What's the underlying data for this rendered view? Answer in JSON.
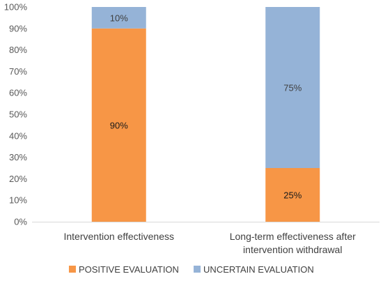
{
  "chart_data": {
    "type": "bar",
    "stacked": true,
    "percent_stacked": true,
    "categories": [
      [
        "Intervention effectiveness"
      ],
      [
        "Long-term effectiveness after",
        "intervention withdrawal"
      ]
    ],
    "series": [
      {
        "name": "POSITIVE EVALUATION",
        "color": "#F79646",
        "label_color": "#1a1a1a",
        "values": [
          90,
          25
        ]
      },
      {
        "name": "UNCERTAIN EVALUATION",
        "color": "#95B3D7",
        "label_color": "#404040",
        "values": [
          10,
          75
        ]
      }
    ],
    "y_ticks": [
      "0%",
      "10%",
      "20%",
      "30%",
      "40%",
      "50%",
      "60%",
      "70%",
      "80%",
      "90%",
      "100%"
    ],
    "data_labels": [
      [
        "90%",
        "25%"
      ],
      [
        "10%",
        "75%"
      ]
    ],
    "ylim": [
      0,
      100
    ],
    "grid": false,
    "legend_position": "bottom"
  }
}
